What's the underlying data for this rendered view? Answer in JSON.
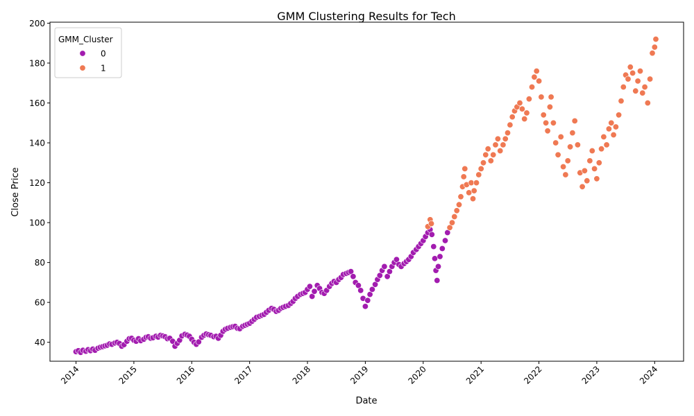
{
  "chart_data": {
    "type": "scatter",
    "title": "GMM Clustering Results for Tech",
    "xlabel": "Date",
    "ylabel": "Close Price",
    "x_ticks": [
      "2014",
      "2015",
      "2016",
      "2017",
      "2018",
      "2019",
      "2020",
      "2021",
      "2022",
      "2023",
      "2024"
    ],
    "y_ticks": [
      "40",
      "60",
      "80",
      "100",
      "120",
      "140",
      "160",
      "180",
      "200"
    ],
    "xlim": [
      2013.55,
      2024.5
    ],
    "ylim": [
      30.5,
      200.5
    ],
    "grid": false,
    "legend": {
      "title": "GMM_Cluster",
      "placement": "top-left",
      "entries": [
        {
          "label": "0",
          "color": "#a21caf"
        },
        {
          "label": "1",
          "color": "#ef7953"
        }
      ]
    },
    "series": [
      {
        "name": "0",
        "color": "#a21caf",
        "points": [
          [
            2014.0,
            35.3
          ],
          [
            2014.04,
            35.8
          ],
          [
            2014.08,
            34.9
          ],
          [
            2014.12,
            36.0
          ],
          [
            2014.17,
            35.5
          ],
          [
            2014.21,
            36.3
          ],
          [
            2014.25,
            35.8
          ],
          [
            2014.29,
            36.6
          ],
          [
            2014.33,
            36.0
          ],
          [
            2014.38,
            37.0
          ],
          [
            2014.42,
            37.5
          ],
          [
            2014.46,
            37.8
          ],
          [
            2014.5,
            38.2
          ],
          [
            2014.54,
            38.5
          ],
          [
            2014.58,
            39.2
          ],
          [
            2014.62,
            39.0
          ],
          [
            2014.67,
            39.6
          ],
          [
            2014.71,
            40.0
          ],
          [
            2014.75,
            39.4
          ],
          [
            2014.79,
            38.0
          ],
          [
            2014.83,
            38.8
          ],
          [
            2014.88,
            40.5
          ],
          [
            2014.92,
            41.8
          ],
          [
            2014.96,
            42.0
          ],
          [
            2015.0,
            41.0
          ],
          [
            2015.04,
            40.5
          ],
          [
            2015.08,
            41.8
          ],
          [
            2015.12,
            40.8
          ],
          [
            2015.17,
            41.5
          ],
          [
            2015.21,
            42.5
          ],
          [
            2015.25,
            42.8
          ],
          [
            2015.29,
            42.0
          ],
          [
            2015.33,
            42.3
          ],
          [
            2015.38,
            43.0
          ],
          [
            2015.42,
            42.6
          ],
          [
            2015.46,
            43.5
          ],
          [
            2015.5,
            43.2
          ],
          [
            2015.54,
            42.8
          ],
          [
            2015.58,
            41.8
          ],
          [
            2015.62,
            42.0
          ],
          [
            2015.67,
            40.5
          ],
          [
            2015.71,
            38.0
          ],
          [
            2015.75,
            39.5
          ],
          [
            2015.79,
            41.0
          ],
          [
            2015.83,
            43.2
          ],
          [
            2015.88,
            44.0
          ],
          [
            2015.92,
            43.6
          ],
          [
            2015.96,
            43.0
          ],
          [
            2016.0,
            41.5
          ],
          [
            2016.04,
            40.0
          ],
          [
            2016.08,
            39.0
          ],
          [
            2016.12,
            40.2
          ],
          [
            2016.17,
            42.5
          ],
          [
            2016.21,
            43.5
          ],
          [
            2016.25,
            44.2
          ],
          [
            2016.29,
            43.8
          ],
          [
            2016.33,
            43.5
          ],
          [
            2016.38,
            42.8
          ],
          [
            2016.42,
            43.0
          ],
          [
            2016.46,
            42.0
          ],
          [
            2016.5,
            43.5
          ],
          [
            2016.54,
            45.5
          ],
          [
            2016.58,
            46.5
          ],
          [
            2016.62,
            47.0
          ],
          [
            2016.67,
            47.5
          ],
          [
            2016.71,
            47.8
          ],
          [
            2016.75,
            48.0
          ],
          [
            2016.79,
            47.0
          ],
          [
            2016.83,
            46.8
          ],
          [
            2016.88,
            48.0
          ],
          [
            2016.92,
            48.5
          ],
          [
            2016.96,
            49.0
          ],
          [
            2017.0,
            49.5
          ],
          [
            2017.04,
            50.5
          ],
          [
            2017.08,
            51.5
          ],
          [
            2017.12,
            52.5
          ],
          [
            2017.17,
            53.0
          ],
          [
            2017.21,
            53.5
          ],
          [
            2017.25,
            54.0
          ],
          [
            2017.29,
            55.0
          ],
          [
            2017.33,
            56.0
          ],
          [
            2017.38,
            57.0
          ],
          [
            2017.42,
            56.5
          ],
          [
            2017.46,
            55.5
          ],
          [
            2017.5,
            56.0
          ],
          [
            2017.54,
            57.0
          ],
          [
            2017.58,
            57.5
          ],
          [
            2017.62,
            58.0
          ],
          [
            2017.67,
            58.5
          ],
          [
            2017.71,
            59.5
          ],
          [
            2017.75,
            60.5
          ],
          [
            2017.79,
            62.0
          ],
          [
            2017.83,
            63.0
          ],
          [
            2017.88,
            64.0
          ],
          [
            2017.92,
            64.5
          ],
          [
            2017.96,
            65.0
          ],
          [
            2018.0,
            66.5
          ],
          [
            2018.04,
            68.0
          ],
          [
            2018.08,
            63.0
          ],
          [
            2018.12,
            65.5
          ],
          [
            2018.17,
            68.5
          ],
          [
            2018.21,
            67.0
          ],
          [
            2018.25,
            65.0
          ],
          [
            2018.29,
            64.5
          ],
          [
            2018.33,
            66.0
          ],
          [
            2018.38,
            68.0
          ],
          [
            2018.42,
            69.5
          ],
          [
            2018.46,
            70.5
          ],
          [
            2018.5,
            70.0
          ],
          [
            2018.54,
            71.5
          ],
          [
            2018.58,
            72.5
          ],
          [
            2018.62,
            74.0
          ],
          [
            2018.67,
            74.5
          ],
          [
            2018.71,
            75.0
          ],
          [
            2018.75,
            75.5
          ],
          [
            2018.79,
            73.0
          ],
          [
            2018.83,
            70.0
          ],
          [
            2018.88,
            68.5
          ],
          [
            2018.92,
            66.0
          ],
          [
            2018.96,
            62.0
          ],
          [
            2019.0,
            58.0
          ],
          [
            2019.04,
            61.0
          ],
          [
            2019.08,
            64.0
          ],
          [
            2019.12,
            66.5
          ],
          [
            2019.17,
            69.0
          ],
          [
            2019.21,
            71.5
          ],
          [
            2019.25,
            73.5
          ],
          [
            2019.29,
            76.0
          ],
          [
            2019.33,
            78.0
          ],
          [
            2019.38,
            73.0
          ],
          [
            2019.42,
            75.5
          ],
          [
            2019.46,
            78.0
          ],
          [
            2019.5,
            80.0
          ],
          [
            2019.54,
            81.5
          ],
          [
            2019.58,
            79.0
          ],
          [
            2019.62,
            78.0
          ],
          [
            2019.67,
            79.5
          ],
          [
            2019.71,
            80.5
          ],
          [
            2019.75,
            81.5
          ],
          [
            2019.79,
            83.0
          ],
          [
            2019.83,
            85.0
          ],
          [
            2019.88,
            86.5
          ],
          [
            2019.92,
            88.0
          ],
          [
            2019.96,
            89.5
          ],
          [
            2020.0,
            91.0
          ],
          [
            2020.04,
            93.0
          ],
          [
            2020.08,
            95.0
          ],
          [
            2020.12,
            96.5
          ],
          [
            2020.15,
            94.0
          ],
          [
            2020.18,
            88.0
          ],
          [
            2020.2,
            82.0
          ],
          [
            2020.22,
            76.0
          ],
          [
            2020.24,
            71.0
          ],
          [
            2020.26,
            78.0
          ],
          [
            2020.29,
            83.0
          ],
          [
            2020.33,
            87.0
          ],
          [
            2020.38,
            91.0
          ],
          [
            2020.42,
            95.0
          ]
        ]
      },
      {
        "name": "1",
        "color": "#ef7953",
        "points": [
          [
            2020.08,
            98.0
          ],
          [
            2020.12,
            101.5
          ],
          [
            2020.14,
            99.5
          ],
          [
            2020.46,
            97.5
          ],
          [
            2020.5,
            100.0
          ],
          [
            2020.54,
            103.0
          ],
          [
            2020.58,
            106.0
          ],
          [
            2020.62,
            109.0
          ],
          [
            2020.65,
            113.0
          ],
          [
            2020.68,
            118.0
          ],
          [
            2020.7,
            123.0
          ],
          [
            2020.72,
            127.0
          ],
          [
            2020.75,
            119.0
          ],
          [
            2020.79,
            115.0
          ],
          [
            2020.83,
            120.0
          ],
          [
            2020.86,
            112.0
          ],
          [
            2020.88,
            116.0
          ],
          [
            2020.92,
            120.0
          ],
          [
            2020.96,
            124.0
          ],
          [
            2021.0,
            127.0
          ],
          [
            2021.04,
            130.0
          ],
          [
            2021.08,
            134.0
          ],
          [
            2021.12,
            137.0
          ],
          [
            2021.17,
            131.0
          ],
          [
            2021.21,
            134.0
          ],
          [
            2021.25,
            139.0
          ],
          [
            2021.29,
            142.0
          ],
          [
            2021.33,
            136.0
          ],
          [
            2021.38,
            139.0
          ],
          [
            2021.42,
            142.0
          ],
          [
            2021.46,
            145.0
          ],
          [
            2021.5,
            149.0
          ],
          [
            2021.54,
            153.0
          ],
          [
            2021.58,
            156.0
          ],
          [
            2021.62,
            158.0
          ],
          [
            2021.67,
            160.0
          ],
          [
            2021.71,
            157.0
          ],
          [
            2021.75,
            152.0
          ],
          [
            2021.79,
            155.0
          ],
          [
            2021.83,
            162.0
          ],
          [
            2021.88,
            168.0
          ],
          [
            2021.92,
            173.0
          ],
          [
            2021.96,
            176.0
          ],
          [
            2022.0,
            171.0
          ],
          [
            2022.04,
            163.0
          ],
          [
            2022.08,
            154.0
          ],
          [
            2022.12,
            150.0
          ],
          [
            2022.15,
            146.0
          ],
          [
            2022.19,
            158.0
          ],
          [
            2022.21,
            163.0
          ],
          [
            2022.25,
            150.0
          ],
          [
            2022.29,
            140.0
          ],
          [
            2022.33,
            134.0
          ],
          [
            2022.38,
            143.0
          ],
          [
            2022.42,
            128.0
          ],
          [
            2022.46,
            124.0
          ],
          [
            2022.5,
            131.0
          ],
          [
            2022.54,
            138.0
          ],
          [
            2022.58,
            145.0
          ],
          [
            2022.62,
            151.0
          ],
          [
            2022.67,
            139.0
          ],
          [
            2022.71,
            125.0
          ],
          [
            2022.75,
            118.0
          ],
          [
            2022.79,
            126.0
          ],
          [
            2022.83,
            121.0
          ],
          [
            2022.88,
            131.0
          ],
          [
            2022.92,
            136.0
          ],
          [
            2022.96,
            127.0
          ],
          [
            2023.0,
            122.0
          ],
          [
            2023.04,
            130.0
          ],
          [
            2023.08,
            137.0
          ],
          [
            2023.12,
            143.0
          ],
          [
            2023.17,
            139.0
          ],
          [
            2023.21,
            147.0
          ],
          [
            2023.25,
            150.0
          ],
          [
            2023.29,
            144.0
          ],
          [
            2023.33,
            148.0
          ],
          [
            2023.38,
            154.0
          ],
          [
            2023.42,
            161.0
          ],
          [
            2023.46,
            168.0
          ],
          [
            2023.5,
            174.0
          ],
          [
            2023.54,
            172.0
          ],
          [
            2023.58,
            178.0
          ],
          [
            2023.62,
            175.0
          ],
          [
            2023.67,
            166.0
          ],
          [
            2023.71,
            171.0
          ],
          [
            2023.75,
            176.0
          ],
          [
            2023.79,
            165.0
          ],
          [
            2023.83,
            168.0
          ],
          [
            2023.88,
            160.0
          ],
          [
            2023.92,
            172.0
          ],
          [
            2023.96,
            185.0
          ],
          [
            2024.0,
            188.0
          ],
          [
            2024.02,
            192.0
          ]
        ]
      }
    ]
  }
}
